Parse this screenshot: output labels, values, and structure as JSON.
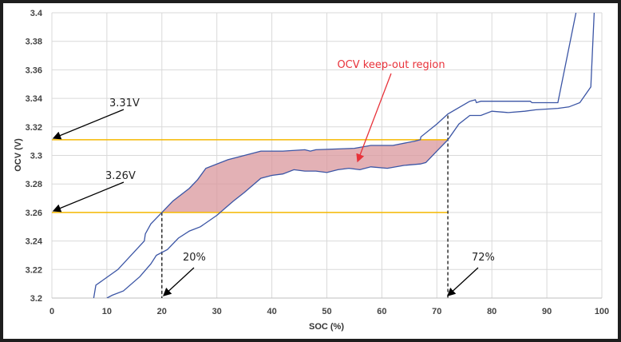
{
  "chart_data": {
    "type": "line",
    "title": "",
    "xlabel": "SOC (%)",
    "ylabel": "OCV (V)",
    "xlim": [
      0,
      100
    ],
    "ylim": [
      3.2,
      3.4
    ],
    "xticks": [
      "0",
      "10",
      "20",
      "30",
      "40",
      "50",
      "60",
      "70",
      "80",
      "90",
      "100"
    ],
    "yticks": [
      "3.2",
      "3.22",
      "3.24",
      "3.26",
      "3.28",
      "3.3",
      "3.32",
      "3.34",
      "3.36",
      "3.38",
      "3.4"
    ],
    "grid": true,
    "series": [
      {
        "color": "#3b55a5",
        "x": [
          7.6,
          8,
          12,
          16.8,
          17,
          18,
          20,
          22,
          25,
          26.5,
          28,
          32,
          36,
          38,
          42,
          46,
          47,
          48,
          55,
          58,
          62,
          66,
          67,
          67.1,
          70,
          72,
          76,
          77,
          77.2,
          78,
          87,
          87.3,
          92,
          95.3
        ],
        "y": [
          3.2,
          3.209,
          3.22,
          3.24,
          3.245,
          3.252,
          3.26,
          3.268,
          3.277,
          3.283,
          3.291,
          3.297,
          3.301,
          3.303,
          3.303,
          3.304,
          3.303,
          3.304,
          3.305,
          3.307,
          3.307,
          3.31,
          3.311,
          3.313,
          3.322,
          3.329,
          3.338,
          3.339,
          3.337,
          3.338,
          3.338,
          3.337,
          3.337,
          3.4
        ]
      },
      {
        "color": "#3b55a5",
        "x": [
          10,
          11,
          13,
          16,
          18,
          19,
          21,
          23,
          25,
          27,
          30,
          33,
          35,
          38,
          40,
          42,
          44,
          46,
          48,
          50,
          52,
          54,
          56,
          58,
          61,
          64,
          67,
          68,
          70,
          72,
          74,
          76,
          78,
          80,
          83,
          86,
          88,
          92,
          94,
          96,
          98,
          98.6
        ],
        "y": [
          3.2,
          3.202,
          3.205,
          3.215,
          3.224,
          3.23,
          3.234,
          3.242,
          3.247,
          3.25,
          3.258,
          3.268,
          3.274,
          3.284,
          3.286,
          3.287,
          3.29,
          3.289,
          3.289,
          3.288,
          3.29,
          3.291,
          3.29,
          3.292,
          3.291,
          3.293,
          3.294,
          3.295,
          3.303,
          3.311,
          3.322,
          3.328,
          3.328,
          3.331,
          3.33,
          3.331,
          3.332,
          3.333,
          3.334,
          3.337,
          3.348,
          3.4
        ]
      }
    ],
    "reference_lines": [
      {
        "axis": "y",
        "value": 3.311,
        "color": "#f5b800"
      },
      {
        "axis": "y",
        "value": 3.26,
        "color": "#f5b800"
      },
      {
        "axis": "x",
        "value": 20,
        "style": "dashed"
      },
      {
        "axis": "x",
        "value": 72,
        "style": "dashed"
      }
    ],
    "region": {
      "label": "OCV keep-out region",
      "color": "#d9979c",
      "x_range": [
        20,
        72
      ],
      "y_range": [
        3.26,
        3.311
      ]
    },
    "annotations": [
      "3.31V",
      "3.26V",
      "20%",
      "72%"
    ]
  }
}
